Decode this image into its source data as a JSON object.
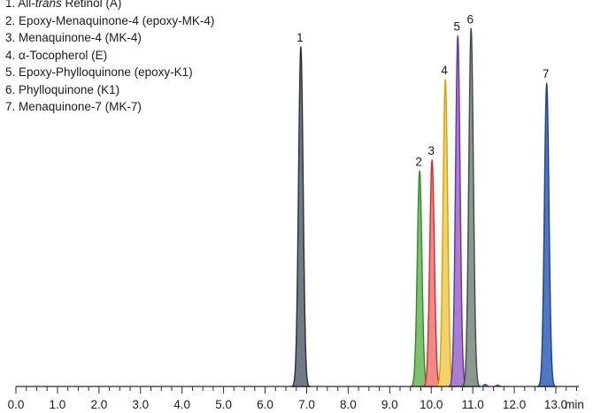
{
  "legend": [
    {
      "num": "1.",
      "text": "All-",
      "italic": "trans",
      "rest": " Retinol (A)"
    },
    {
      "num": "2.",
      "text": "Epoxy-Menaquinone-4 (epoxy-MK-4)"
    },
    {
      "num": "3.",
      "text": "Menaquinone-4 (MK-4)"
    },
    {
      "num": "4.",
      "text": "α-Tocopherol (E)"
    },
    {
      "num": "5.",
      "text": "Epoxy-Phylloquinone (epoxy-K1)"
    },
    {
      "num": "6.",
      "text": "Phylloquinone (K1)"
    },
    {
      "num": "7.",
      "text": "Menaquinone-7 (MK-7)"
    }
  ],
  "chart_data": {
    "type": "line",
    "title": "",
    "xlabel": "",
    "ylabel": "",
    "x_unit_label": "min",
    "xlim": [
      0.0,
      13.0
    ],
    "x_ticks": [
      "0.0",
      "1.0",
      "2.0",
      "3.0",
      "4.0",
      "5.0",
      "6.0",
      "7.0",
      "8.0",
      "9.0",
      "10.0",
      "11.0",
      "12.0",
      "13.0"
    ],
    "grid": false,
    "ylim": [
      0,
      100
    ],
    "series": [
      {
        "peak_label": "1",
        "retention_time": 6.86,
        "height": 93,
        "color": "#2b2f36",
        "fill": "#6f7b86"
      },
      {
        "peak_label": "2",
        "retention_time": 9.72,
        "height": 59,
        "color": "#2e8b2e",
        "fill": "#7fbf6e"
      },
      {
        "peak_label": "3",
        "retention_time": 10.02,
        "height": 62,
        "color": "#d62828",
        "fill": "#f08a8a"
      },
      {
        "peak_label": "4",
        "retention_time": 10.34,
        "height": 84,
        "color": "#d4a300",
        "fill": "#f2d36b"
      },
      {
        "peak_label": "5",
        "retention_time": 10.64,
        "height": 96,
        "color": "#6a2fa0",
        "fill": "#a77fd0"
      },
      {
        "peak_label": "6",
        "retention_time": 10.96,
        "height": 98,
        "color": "#3b4a42",
        "fill": "#8a9890"
      },
      {
        "peak_label": "7",
        "retention_time": 12.78,
        "height": 83,
        "color": "#1f3f8f",
        "fill": "#4f78c4"
      }
    ],
    "minor_features": [
      {
        "retention_time": 11.3,
        "height": 0.6
      },
      {
        "retention_time": 11.6,
        "height": 0.4
      }
    ]
  }
}
